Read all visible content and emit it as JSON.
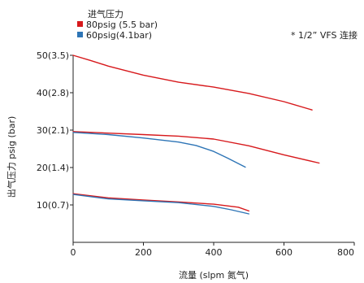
{
  "chart_data": {
    "type": "line",
    "xlabel": "流量 (slpm 氮气)",
    "ylabel": "出气压力 psig (bar)",
    "xlim": [
      0,
      800
    ],
    "ylim": [
      0,
      50
    ],
    "x_ticks": [
      {
        "value": 0,
        "label": "0"
      },
      {
        "value": 200,
        "label": "200"
      },
      {
        "value": 400,
        "label": "400"
      },
      {
        "value": 600,
        "label": "600"
      },
      {
        "value": 800,
        "label": "800"
      }
    ],
    "y_ticks": [
      {
        "value": 10,
        "label": "10(0.7)"
      },
      {
        "value": 20,
        "label": "20(1.4)"
      },
      {
        "value": 30,
        "label": "30(2.1)"
      },
      {
        "value": 40,
        "label": "40(2.8)"
      },
      {
        "value": 50,
        "label": "50(3.5)"
      }
    ],
    "legend_title": "进气压力",
    "legend_position": "top-left",
    "note": "* 1/2”   VFS 连接",
    "grid": false,
    "series": [
      {
        "name": "80psig (5.5 bar)",
        "color": "#d7191c",
        "curves": [
          [
            [
              0,
              50
            ],
            [
              50,
              48.6
            ],
            [
              100,
              47.1
            ],
            [
              200,
              44.7
            ],
            [
              300,
              42.8
            ],
            [
              400,
              41.5
            ],
            [
              500,
              39.8
            ],
            [
              600,
              37.6
            ],
            [
              680,
              35.4
            ]
          ],
          [
            [
              0,
              29.6
            ],
            [
              100,
              29.2
            ],
            [
              200,
              28.8
            ],
            [
              300,
              28.4
            ],
            [
              400,
              27.6
            ],
            [
              500,
              25.8
            ],
            [
              600,
              23.4
            ],
            [
              700,
              21.2
            ]
          ],
          [
            [
              0,
              13
            ],
            [
              100,
              11.9
            ],
            [
              200,
              11.3
            ],
            [
              300,
              10.8
            ],
            [
              400,
              10.2
            ],
            [
              470,
              9.4
            ],
            [
              500,
              8.4
            ]
          ]
        ]
      },
      {
        "name": "60psig(4.1bar)",
        "color": "#2e75b6",
        "curves": [
          [
            [
              0,
              29.4
            ],
            [
              100,
              28.8
            ],
            [
              200,
              27.9
            ],
            [
              300,
              26.8
            ],
            [
              350,
              25.9
            ],
            [
              400,
              24.3
            ],
            [
              440,
              22.5
            ],
            [
              490,
              20.1
            ]
          ],
          [
            [
              0,
              12.8
            ],
            [
              100,
              11.6
            ],
            [
              200,
              11.1
            ],
            [
              300,
              10.6
            ],
            [
              400,
              9.6
            ],
            [
              450,
              8.7
            ],
            [
              500,
              7.6
            ]
          ]
        ]
      }
    ]
  }
}
